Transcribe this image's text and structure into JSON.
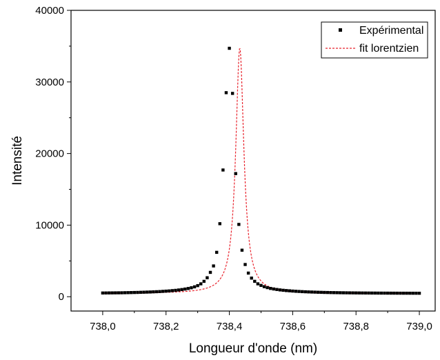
{
  "chart_data": {
    "type": "scatter",
    "xlabel": "Longueur d'onde (nm)",
    "ylabel": "Intensité",
    "xlim": [
      737.9,
      739.05
    ],
    "ylim": [
      -2000,
      40000
    ],
    "x_ticks": [
      "738,0",
      "738,2",
      "738,4",
      "738,6",
      "738,8",
      "739,0"
    ],
    "x_tick_values": [
      738.0,
      738.2,
      738.4,
      738.6,
      738.8,
      739.0
    ],
    "y_ticks": [
      "0",
      "10000",
      "20000",
      "30000",
      "40000"
    ],
    "y_tick_values": [
      0,
      10000,
      20000,
      30000,
      40000
    ],
    "grid": false,
    "legend_position": "top-right",
    "series": [
      {
        "name": "Expérimental",
        "style": "square-markers",
        "color": "#000000",
        "x": [
          738.0,
          738.01,
          738.02,
          738.03,
          738.04,
          738.05,
          738.06,
          738.07,
          738.08,
          738.09,
          738.1,
          738.11,
          738.12,
          738.13,
          738.14,
          738.15,
          738.16,
          738.17,
          738.18,
          738.19,
          738.2,
          738.21,
          738.22,
          738.23,
          738.24,
          738.25,
          738.26,
          738.27,
          738.28,
          738.29,
          738.3,
          738.31,
          738.32,
          738.33,
          738.34,
          738.35,
          738.36,
          738.37,
          738.38,
          738.39,
          738.4,
          738.41,
          738.42,
          738.43,
          738.44,
          738.45,
          738.46,
          738.47,
          738.48,
          738.49,
          738.5,
          738.51,
          738.52,
          738.53,
          738.54,
          738.55,
          738.56,
          738.57,
          738.58,
          738.59,
          738.6,
          738.61,
          738.62,
          738.63,
          738.64,
          738.65,
          738.66,
          738.67,
          738.68,
          738.69,
          738.7,
          738.71,
          738.72,
          738.73,
          738.74,
          738.75,
          738.76,
          738.77,
          738.78,
          738.79,
          738.8,
          738.81,
          738.82,
          738.83,
          738.84,
          738.85,
          738.86,
          738.87,
          738.88,
          738.89,
          738.9,
          738.91,
          738.92,
          738.93,
          738.94,
          738.95,
          738.96,
          738.97,
          738.98,
          738.99,
          739.0
        ],
        "y": [
          520,
          525,
          530,
          535,
          540,
          545,
          550,
          560,
          570,
          580,
          590,
          600,
          615,
          630,
          645,
          660,
          680,
          700,
          720,
          750,
          780,
          810,
          850,
          890,
          940,
          1000,
          1070,
          1150,
          1250,
          1380,
          1550,
          1800,
          2150,
          2650,
          3400,
          4300,
          6200,
          10200,
          17700,
          28500,
          34700,
          28400,
          17200,
          10100,
          6500,
          4500,
          3300,
          2600,
          2150,
          1800,
          1580,
          1400,
          1270,
          1160,
          1080,
          1010,
          950,
          900,
          860,
          825,
          790,
          760,
          735,
          710,
          690,
          670,
          655,
          640,
          625,
          612,
          600,
          590,
          580,
          572,
          565,
          558,
          551,
          545,
          540,
          535,
          530,
          526,
          522,
          518,
          515,
          512,
          509,
          506,
          504,
          502,
          500,
          498,
          496,
          494,
          492,
          491,
          490,
          489,
          488,
          487,
          486
        ]
      },
      {
        "name": "fit lorentzien",
        "style": "dashed-line",
        "color": "#e8202a",
        "x0": 738.433,
        "gamma": 0.0155,
        "amplitude": 34300,
        "baseline": 460
      }
    ]
  }
}
